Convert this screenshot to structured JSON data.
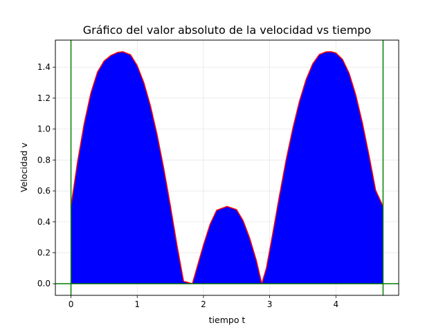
{
  "chart_data": {
    "type": "area",
    "title": "Gráfico del valor absoluto de la velocidad vs tiempo",
    "xlabel": "tiempo t",
    "ylabel": "Velocidad v",
    "xlim": [
      -0.2356,
      4.948
    ],
    "ylim": [
      -0.075,
      1.575
    ],
    "x_ticks": [
      0,
      1,
      2,
      3,
      4
    ],
    "x_tick_labels": [
      "0",
      "1",
      "2",
      "3",
      "4"
    ],
    "y_ticks": [
      0.0,
      0.2,
      0.4,
      0.6,
      0.8,
      1.0,
      1.2,
      1.4
    ],
    "y_tick_labels": [
      "0.0",
      "0.2",
      "0.4",
      "0.6",
      "0.8",
      "1.0",
      "1.2",
      "1.4"
    ],
    "grid": true,
    "series": [
      {
        "x": [
          0,
          0.1,
          0.2,
          0.3,
          0.4,
          0.5,
          0.6,
          0.7,
          0.785,
          0.9,
          1.0,
          1.1,
          1.2,
          1.3,
          1.4,
          1.5,
          1.6,
          1.7,
          1.833,
          1.9,
          2.0,
          2.1,
          2.2,
          2.356,
          2.5,
          2.6,
          2.7,
          2.8,
          2.88,
          2.95,
          3.05,
          3.15,
          3.25,
          3.35,
          3.45,
          3.55,
          3.65,
          3.75,
          3.85,
          3.927,
          4.0,
          4.1,
          4.2,
          4.3,
          4.4,
          4.5,
          4.6,
          4.712
        ],
        "y": [
          0.5,
          0.789,
          1.036,
          1.232,
          1.368,
          1.44,
          1.475,
          1.495,
          1.5,
          1.48,
          1.41,
          1.3,
          1.15,
          0.964,
          0.747,
          0.507,
          0.25,
          0.016,
          0.0,
          0.1,
          0.25,
          0.384,
          0.475,
          0.5,
          0.479,
          0.407,
          0.292,
          0.148,
          0.0,
          0.1,
          0.333,
          0.575,
          0.804,
          1.005,
          1.18,
          1.32,
          1.422,
          1.482,
          1.499,
          1.5,
          1.492,
          1.45,
          1.36,
          1.22,
          1.04,
          0.83,
          0.604,
          0.5
        ],
        "fill": "#0000ff",
        "line": "#ff0000"
      }
    ],
    "vertical_lines": [
      0,
      4.712
    ],
    "horizontal_lines": [
      0
    ],
    "reference_line_color": "#008000"
  }
}
